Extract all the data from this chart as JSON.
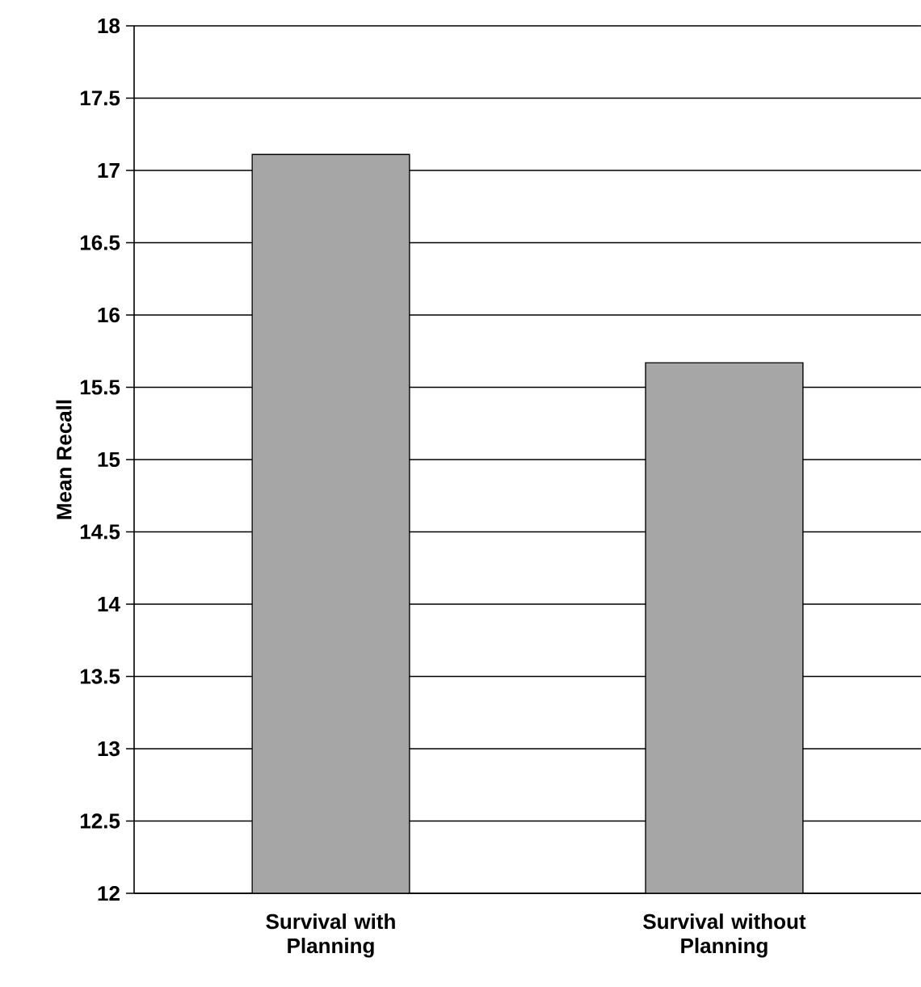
{
  "chart_data": {
    "type": "bar",
    "ylabel": "Mean Recall",
    "categories": [
      "Survival with Planning",
      "Survival without Planning"
    ],
    "values": [
      17.11,
      15.67
    ],
    "color": "#a6a6a6",
    "ylim": [
      12,
      18
    ],
    "yticks": [
      12,
      12.5,
      13,
      13.5,
      14,
      14.5,
      15,
      15.5,
      16,
      16.5,
      17,
      17.5,
      18
    ],
    "grid": "y"
  }
}
